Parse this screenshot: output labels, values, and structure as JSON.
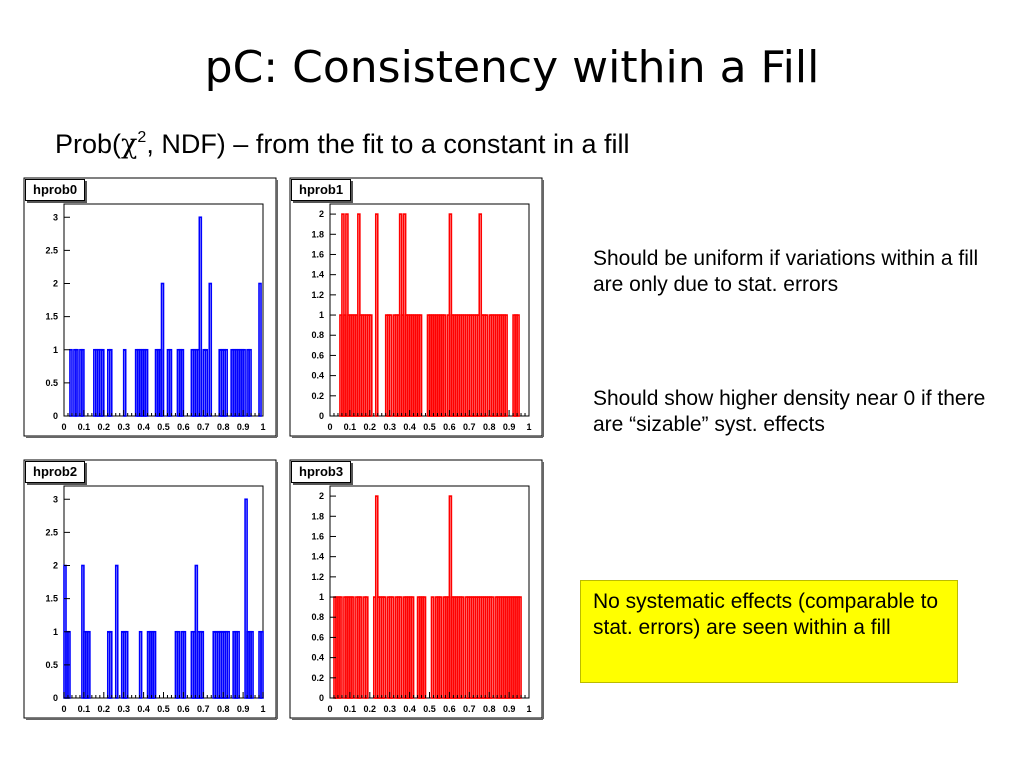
{
  "slide": {
    "title": "pC: Consistency within a Fill",
    "subtitle_prefix": "Prob(",
    "subtitle_chi": "χ",
    "subtitle_sup": "2",
    "subtitle_suffix": ", NDF) – from the fit to a constant in a fill",
    "note1": "Should be uniform if variations within a fill are only due to stat. errors",
    "note2": "Should show higher density near 0 if there are “sizable” syst. effects",
    "callout": "No systematic effects (comparable to stat. errors) are seen within a fill",
    "callout_color": "#ffff00"
  },
  "chart_data": [
    {
      "type": "bar",
      "name": "hprob0",
      "color": "#0000ff",
      "title": "hprob0",
      "xlim": [
        0,
        1
      ],
      "ylim": [
        0,
        3.2
      ],
      "xticks": [
        "0",
        "0.1",
        "0.2",
        "0.3",
        "0.4",
        "0.5",
        "0.6",
        "0.7",
        "0.8",
        "0.9",
        "1"
      ],
      "yticks": [
        "0",
        "0.5",
        "1",
        "1.5",
        "2",
        "2.5",
        "3"
      ],
      "bins": 100,
      "values": [
        0,
        0,
        0,
        1,
        0,
        1,
        1,
        0,
        1,
        1,
        0,
        0,
        0,
        0,
        0,
        1,
        1,
        1,
        1,
        1,
        0,
        0,
        1,
        1,
        0,
        0,
        0,
        0,
        0,
        0,
        1,
        0,
        0,
        0,
        0,
        0,
        1,
        1,
        1,
        1,
        1,
        1,
        0,
        0,
        0,
        0,
        1,
        1,
        1,
        2,
        0,
        0,
        1,
        1,
        0,
        0,
        0,
        1,
        1,
        1,
        0,
        0,
        0,
        0,
        1,
        1,
        1,
        1,
        3,
        0,
        1,
        1,
        0,
        2,
        0,
        0,
        0,
        0,
        1,
        1,
        1,
        1,
        0,
        0,
        1,
        1,
        1,
        1,
        1,
        1,
        1,
        0,
        1,
        1,
        0,
        0,
        0,
        0,
        2,
        0
      ]
    },
    {
      "type": "bar",
      "name": "hprob1",
      "color": "#ff0000",
      "title": "hprob1",
      "xlim": [
        0,
        1
      ],
      "ylim": [
        0,
        2.1
      ],
      "xticks": [
        "0",
        "0.1",
        "0.2",
        "0.3",
        "0.4",
        "0.5",
        "0.6",
        "0.7",
        "0.8",
        "0.9",
        "1"
      ],
      "yticks": [
        "0",
        "0.2",
        "0.4",
        "0.6",
        "0.8",
        "1",
        "1.2",
        "1.4",
        "1.6",
        "1.8",
        "2"
      ],
      "bins": 100,
      "values": [
        0,
        0,
        0,
        0,
        0,
        1,
        2,
        1,
        2,
        1,
        1,
        1,
        1,
        1,
        2,
        1,
        1,
        1,
        1,
        1,
        1,
        0,
        0,
        2,
        0,
        0,
        0,
        0,
        1,
        1,
        1,
        0,
        1,
        1,
        1,
        2,
        1,
        2,
        1,
        1,
        1,
        1,
        1,
        1,
        1,
        1,
        0,
        0,
        0,
        1,
        1,
        1,
        1,
        1,
        1,
        1,
        1,
        1,
        0,
        1,
        2,
        1,
        1,
        1,
        1,
        1,
        1,
        1,
        1,
        1,
        1,
        1,
        1,
        1,
        1,
        2,
        1,
        1,
        1,
        0,
        1,
        1,
        1,
        1,
        1,
        1,
        1,
        1,
        1,
        0,
        0,
        0,
        1,
        1,
        1,
        0,
        0,
        0,
        0,
        0
      ]
    },
    {
      "type": "bar",
      "name": "hprob2",
      "color": "#0000ff",
      "title": "hprob2",
      "xlim": [
        0,
        1
      ],
      "ylim": [
        0,
        3.2
      ],
      "xticks": [
        "0",
        "0.1",
        "0.2",
        "0.3",
        "0.4",
        "0.5",
        "0.6",
        "0.7",
        "0.8",
        "0.9",
        "1"
      ],
      "yticks": [
        "0",
        "0.5",
        "1",
        "1.5",
        "2",
        "2.5",
        "3"
      ],
      "bins": 100,
      "values": [
        2,
        1,
        1,
        0,
        0,
        0,
        0,
        0,
        0,
        2,
        1,
        1,
        1,
        0,
        0,
        0,
        0,
        0,
        0,
        0,
        0,
        0,
        1,
        1,
        0,
        0,
        2,
        0,
        0,
        1,
        1,
        1,
        0,
        0,
        0,
        0,
        0,
        0,
        1,
        0,
        0,
        0,
        1,
        1,
        1,
        1,
        0,
        0,
        0,
        0,
        0,
        0,
        0,
        0,
        0,
        0,
        1,
        1,
        0,
        1,
        1,
        0,
        0,
        0,
        1,
        1,
        2,
        1,
        1,
        1,
        0,
        0,
        0,
        0,
        0,
        1,
        1,
        1,
        1,
        1,
        1,
        1,
        1,
        0,
        0,
        1,
        1,
        1,
        0,
        0,
        0,
        3,
        1,
        1,
        1,
        0,
        0,
        0,
        1,
        1
      ]
    },
    {
      "type": "bar",
      "name": "hprob3",
      "color": "#ff0000",
      "title": "hprob3",
      "xlim": [
        0,
        1
      ],
      "ylim": [
        0,
        2.1
      ],
      "xticks": [
        "0",
        "0.1",
        "0.2",
        "0.3",
        "0.4",
        "0.5",
        "0.6",
        "0.7",
        "0.8",
        "0.9",
        "1"
      ],
      "yticks": [
        "0",
        "0.2",
        "0.4",
        "0.6",
        "0.8",
        "1",
        "1.2",
        "1.4",
        "1.6",
        "1.8",
        "2"
      ],
      "bins": 100,
      "values": [
        0,
        0,
        1,
        1,
        1,
        1,
        0,
        1,
        1,
        1,
        1,
        1,
        0,
        1,
        1,
        1,
        0,
        1,
        1,
        0,
        0,
        0,
        1,
        2,
        1,
        1,
        1,
        1,
        0,
        1,
        1,
        1,
        0,
        1,
        1,
        1,
        0,
        1,
        1,
        1,
        1,
        1,
        0,
        0,
        1,
        1,
        1,
        1,
        0,
        0,
        0,
        1,
        0,
        1,
        1,
        1,
        0,
        1,
        1,
        1,
        2,
        1,
        1,
        1,
        1,
        1,
        1,
        0,
        1,
        1,
        1,
        1,
        1,
        1,
        1,
        1,
        1,
        1,
        1,
        1,
        1,
        1,
        0,
        1,
        1,
        1,
        1,
        1,
        1,
        1,
        1,
        1,
        1,
        1,
        1,
        1,
        0,
        0,
        0,
        0
      ]
    }
  ]
}
